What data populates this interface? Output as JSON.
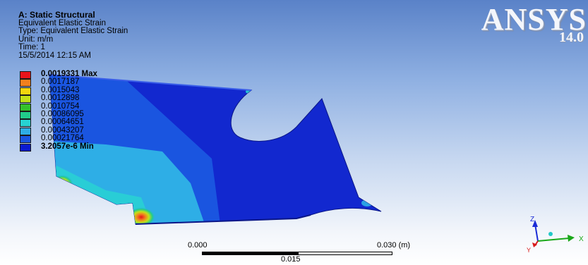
{
  "info": {
    "title": "A: Static Structural",
    "result_name": "Equivalent Elastic Strain",
    "type": "Type: Equivalent Elastic Strain",
    "unit": "Unit: m/m",
    "time": "Time: 1",
    "datetime": "15/5/2014 12:15 AM"
  },
  "legend": {
    "entries": [
      {
        "label": "0.0019331 Max",
        "color": "#e8141b",
        "bold": true
      },
      {
        "label": "0.0017187",
        "color": "#f2801e",
        "bold": false
      },
      {
        "label": "0.0015043",
        "color": "#f4d50e",
        "bold": false
      },
      {
        "label": "0.0012898",
        "color": "#c4e018",
        "bold": false
      },
      {
        "label": "0.0010754",
        "color": "#34c12b",
        "bold": false
      },
      {
        "label": "0.00086095",
        "color": "#21cc8a",
        "bold": false
      },
      {
        "label": "0.00064651",
        "color": "#28d2d2",
        "bold": false
      },
      {
        "label": "0.00043207",
        "color": "#2eaee6",
        "bold": false
      },
      {
        "label": "0.00021764",
        "color": "#1a55e0",
        "bold": false
      },
      {
        "label": "3.2057e-6 Min",
        "color": "#0b1ad0",
        "bold": true
      }
    ]
  },
  "logo": {
    "brand": "ANSYS",
    "version": "14.0"
  },
  "scale_bar": {
    "start_label": "0.000",
    "mid_label": "0.015",
    "end_label": "0.030 (m)"
  },
  "triad": {
    "axes": [
      {
        "label": "Z",
        "color": "#1a2bd6"
      },
      {
        "label": "X",
        "color": "#1aa81a"
      },
      {
        "label": "Y",
        "color": "#d91a1a"
      }
    ]
  }
}
